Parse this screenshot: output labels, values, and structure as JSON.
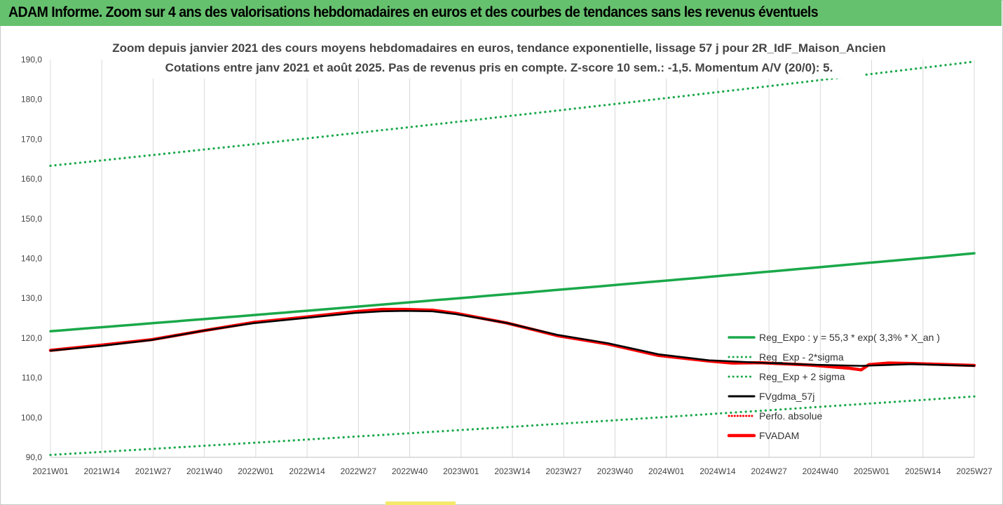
{
  "header": {
    "title": "ADAM Informe. Zoom sur 4 ans des valorisations hebdomadaires en euros et des courbes de tendances sans les revenus éventuels"
  },
  "chart_data": {
    "type": "line",
    "subtitle_line1": "Zoom depuis janvier 2021 des cours moyens hebdomadaires en euros, tendance exponentielle, lissage 57 j pour 2R_IdF_Maison_Ancien",
    "subtitle_line2": "Cotations entre janv 2021 et août 2025. Pas de revenus pris en compte. Z-score 10 sem.: -1,5. Momentum A/V (20/0): 5.",
    "x_categories": [
      "2021W01",
      "2021W14",
      "2021W27",
      "2021W40",
      "2022W01",
      "2022W14",
      "2022W27",
      "2022W40",
      "2023W01",
      "2023W14",
      "2023W27",
      "2023W40",
      "2024W01",
      "2024W14",
      "2024W27",
      "2024W40",
      "2025W01",
      "2025W14",
      "2025W27"
    ],
    "x_range_weeks": [
      0,
      237
    ],
    "ylim": [
      90,
      190
    ],
    "yticks": [
      "90,0",
      "100,0",
      "110,0",
      "120,0",
      "130,0",
      "140,0",
      "150,0",
      "160,0",
      "170,0",
      "180,0",
      "190,0"
    ],
    "grid": "vertical",
    "legend_position": "right",
    "series": [
      {
        "name": "Reg_Expo : y = 55,3 * exp( 3,3% *  X_an )",
        "style": "solid",
        "color": "#1aa84a",
        "points": [
          [
            0,
            121.7
          ],
          [
            237,
            141.3
          ]
        ]
      },
      {
        "name": "Reg_Exp - 2*sigma",
        "style": "dotted",
        "color": "#1aa84a",
        "points": [
          [
            0,
            90.6
          ],
          [
            237,
            105.3
          ]
        ]
      },
      {
        "name": "Reg_Exp + 2 sigma",
        "style": "dotted",
        "color": "#1aa84a",
        "points": [
          [
            0,
            163.3
          ],
          [
            237,
            189.5
          ]
        ]
      },
      {
        "name": "FVgdma_57j",
        "style": "solid",
        "color": "#000000",
        "points": [
          [
            0,
            116.8
          ],
          [
            13,
            118.0
          ],
          [
            26,
            119.5
          ],
          [
            39,
            121.8
          ],
          [
            52,
            123.7
          ],
          [
            65,
            125.0
          ],
          [
            78,
            126.3
          ],
          [
            85,
            126.7
          ],
          [
            91,
            126.8
          ],
          [
            98,
            126.7
          ],
          [
            104,
            126.0
          ],
          [
            117,
            123.8
          ],
          [
            130,
            120.8
          ],
          [
            143,
            118.7
          ],
          [
            156,
            115.9
          ],
          [
            169,
            114.4
          ],
          [
            182,
            113.8
          ],
          [
            195,
            113.3
          ],
          [
            208,
            113.0
          ],
          [
            221,
            113.4
          ],
          [
            237,
            113.0
          ]
        ]
      },
      {
        "name": "Perfo. absolue",
        "style": "dotted",
        "color": "#ff0000",
        "points": []
      },
      {
        "name": "FVADAM",
        "style": "solid",
        "color": "#ff0000",
        "points": [
          [
            0,
            116.9
          ],
          [
            13,
            118.2
          ],
          [
            26,
            119.6
          ],
          [
            39,
            121.8
          ],
          [
            52,
            123.9
          ],
          [
            65,
            125.2
          ],
          [
            78,
            126.6
          ],
          [
            85,
            127.2
          ],
          [
            91,
            127.2
          ],
          [
            98,
            127.0
          ],
          [
            104,
            126.2
          ],
          [
            117,
            123.8
          ],
          [
            130,
            120.6
          ],
          [
            143,
            118.5
          ],
          [
            156,
            115.6
          ],
          [
            169,
            114.2
          ],
          [
            175,
            113.7
          ],
          [
            182,
            113.8
          ],
          [
            195,
            113.2
          ],
          [
            200,
            112.8
          ],
          [
            205,
            112.4
          ],
          [
            208,
            112.0
          ],
          [
            210,
            113.3
          ],
          [
            215,
            113.7
          ],
          [
            221,
            113.6
          ],
          [
            237,
            113.1
          ]
        ]
      }
    ]
  }
}
